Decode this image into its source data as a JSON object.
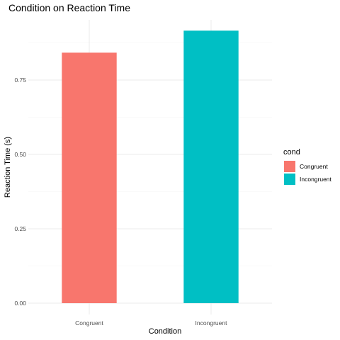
{
  "chart_data": {
    "type": "bar",
    "title": "Condition on Reaction Time",
    "xlabel": "Condition",
    "ylabel": "Reaction Time (s)",
    "categories": [
      "Congruent",
      "Incongruent"
    ],
    "values": [
      0.842,
      0.916
    ],
    "colors": [
      "#F8766D",
      "#00BFC4"
    ],
    "ylim": [
      0,
      0.95
    ],
    "yticks": [
      0,
      0.25,
      0.5,
      0.75
    ],
    "ytick_labels": [
      "0.00",
      "0.25",
      "0.50",
      "0.75"
    ],
    "grid": true,
    "legend": {
      "title": "cond",
      "position": "right",
      "entries": [
        "Congruent",
        "Incongruent"
      ]
    }
  }
}
